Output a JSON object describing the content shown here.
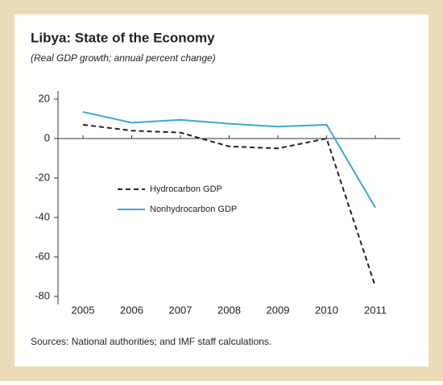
{
  "chart_data": {
    "type": "line",
    "title": "Libya: State of the Economy",
    "subtitle": "(Real GDP growth; annual percent change)",
    "source": "Sources: National authorities; and IMF staff calculations.",
    "categories": [
      "2005",
      "2006",
      "2007",
      "2008",
      "2009",
      "2010",
      "2011"
    ],
    "series": [
      {
        "name": "Hydrocarbon GDP",
        "color": "#222222",
        "dashed": true,
        "values": [
          7,
          4,
          3,
          -4,
          -5,
          0,
          -75
        ]
      },
      {
        "name": "Nonhydrocarbon GDP",
        "color": "#3aa7d8",
        "dashed": false,
        "values": [
          13.5,
          8,
          9.5,
          7.5,
          6,
          7,
          -35
        ]
      }
    ],
    "ylim": [
      -80,
      20
    ],
    "yticks": [
      20,
      0,
      -20,
      -40,
      -60,
      -80
    ]
  }
}
